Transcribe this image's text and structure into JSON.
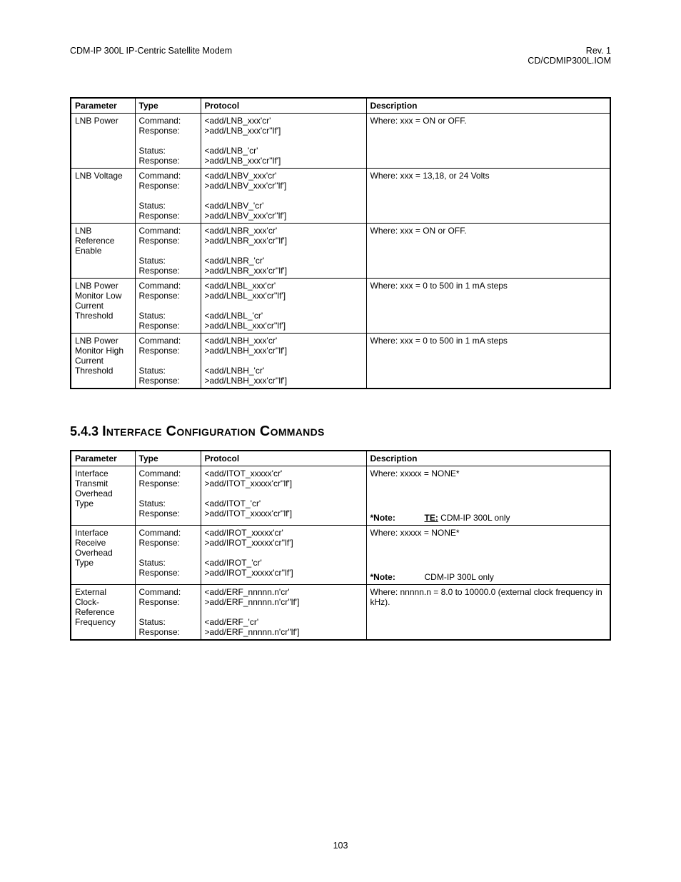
{
  "header": {
    "left": "CDM-IP 300L IP-Centric Satellite Modem",
    "right_line1": "Rev. 1",
    "right_line2": "CD/CDMIP300L.IOM"
  },
  "table1": {
    "columns": [
      "Parameter",
      "Type",
      "Protocol",
      "Description"
    ],
    "rows": [
      {
        "param": "LNB Power",
        "type_lines": [
          "Command:",
          "Response:",
          "",
          "Status:",
          "Response:"
        ],
        "proto_lines": [
          "<add/LNB_xxx'cr'",
          ">add/LNB_xxx'cr''lf']",
          "",
          "<add/LNB_'cr'",
          ">add/LNB_xxx'cr''lf']",
          ""
        ],
        "desc_lines": [
          "Where: xxx = ON or OFF."
        ]
      },
      {
        "param": "LNB Voltage",
        "type_lines": [
          "Command:",
          "Response:",
          "",
          "Status:",
          "Response:"
        ],
        "proto_lines": [
          "<add/LNBV_xxx'cr'",
          ">add/LNBV_xxx'cr''lf']",
          "",
          "<add/LNBV_'cr'",
          ">add/LNBV_xxx'cr''lf']",
          ""
        ],
        "desc_lines": [
          "Where: xxx = 13,18, or 24 Volts"
        ]
      },
      {
        "param": "LNB Reference Enable",
        "type_lines": [
          "Command:",
          "Response:",
          "",
          "Status:",
          "Response:"
        ],
        "proto_lines": [
          "<add/LNBR_xxx'cr'",
          ">add/LNBR_xxx'cr''lf']",
          "",
          "<add/LNBR_'cr'",
          ">add/LNBR_xxx'cr''lf']",
          ""
        ],
        "desc_lines": [
          "Where: xxx = ON or OFF."
        ]
      },
      {
        "param": "LNB Power Monitor Low Current Threshold",
        "type_lines": [
          "Command:",
          "Response:",
          "",
          "Status:",
          "Response:"
        ],
        "proto_lines": [
          "<add/LNBL_xxx'cr'",
          ">add/LNBL_xxx'cr''lf']",
          "",
          "<add/LNBL_'cr'",
          ">add/LNBL_xxx'cr''lf']",
          ""
        ],
        "desc_lines": [
          "Where: xxx =  0 to 500 in 1 mA steps"
        ]
      },
      {
        "param": "LNB Power Monitor High Current Threshold",
        "type_lines": [
          "Command:",
          "Response:",
          "",
          "Status:",
          "Response:"
        ],
        "proto_lines": [
          "<add/LNBH_xxx'cr'",
          ">add/LNBH_xxx'cr''lf']",
          "",
          "<add/LNBH_'cr'",
          ">add/LNBH_xxx'cr''lf']",
          ""
        ],
        "desc_lines": [
          "Where: xxx =  0 to 500 in 1 mA steps"
        ]
      }
    ]
  },
  "section": {
    "number": "5.4.3",
    "title_caps": "Interface Configuration Commands"
  },
  "table2": {
    "columns": [
      "Parameter",
      "Type",
      "Protocol",
      "Description"
    ],
    "rows": [
      {
        "param": "Interface Transmit Overhead Type",
        "type_lines": [
          "Command:",
          "Response:",
          "",
          "Status:",
          "Response:"
        ],
        "proto_lines": [
          "<add/ITOT_xxxxx'cr'",
          ">add/ITOT_xxxxx'cr''lf']",
          "",
          "<add/ITOT_'cr'",
          ">add/ITOT_xxxxx'cr''lf']"
        ],
        "desc_lines": [
          "Where: xxxxx = NONE*"
        ],
        "note_label": "*Note:",
        "note_bold": "TE:",
        "note_rest": " CDM-IP 300L only"
      },
      {
        "param": "Interface Receive Overhead Type",
        "type_lines": [
          "Command:",
          "Response:",
          "",
          "Status:",
          "Response:"
        ],
        "proto_lines": [
          "<add/IROT_xxxxx'cr'",
          ">add/IROT_xxxxx'cr''lf']",
          "",
          "<add/IROT_'cr'",
          ">add/IROT_xxxxx'cr''lf']"
        ],
        "desc_lines": [
          "Where: xxxxx = NONE*"
        ],
        "note_label": "*Note:",
        "note_bold": "",
        "note_rest": "CDM-IP 300L only"
      },
      {
        "param": "External Clock-Reference Frequency",
        "type_lines": [
          "Command:",
          "Response:",
          "",
          "Status:",
          "Response:"
        ],
        "proto_lines": [
          "<add/ERF_nnnnn.n'cr'",
          ">add/ERF_nnnnn.n'cr''lf']",
          "",
          "<add/ERF_'cr'",
          ">add/ERF_nnnnn.n'cr''lf']",
          ""
        ],
        "desc_lines": [
          "Where: nnnnn.n = 8.0 to 10000.0 (external clock frequency in kHz)."
        ]
      }
    ]
  },
  "page_number": "103",
  "colors": {
    "text": "#000000",
    "background": "#ffffff",
    "border": "#000000"
  }
}
